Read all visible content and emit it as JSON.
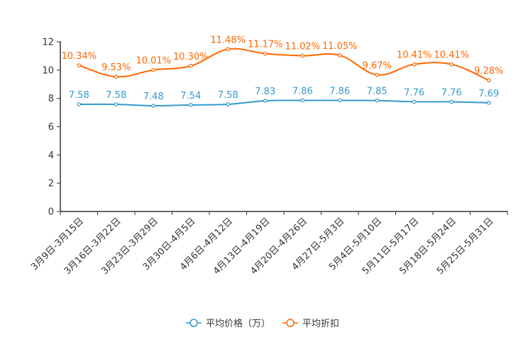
{
  "chart_data": {
    "type": "line",
    "categories": [
      "3月9日-3月15日",
      "3月16日-3月22日",
      "3月23日-3月29日",
      "3月30日-4月5日",
      "4月6日-4月12日",
      "4月13日-4月19日",
      "4月20日-4月26日",
      "4月27日-5月3日",
      "5月4日-5月10日",
      "5月11日-5月17日",
      "5月18日-5月24日",
      "5月25日-5月31日"
    ],
    "series": [
      {
        "name": "平均价格（万）",
        "color": "#3399cc",
        "values": [
          7.58,
          7.58,
          7.48,
          7.54,
          7.58,
          7.83,
          7.86,
          7.86,
          7.85,
          7.76,
          7.76,
          7.69
        ],
        "labels": [
          "7.58",
          "7.58",
          "7.48",
          "7.54",
          "7.58",
          "7.83",
          "7.86",
          "7.86",
          "7.85",
          "7.76",
          "7.76",
          "7.69"
        ]
      },
      {
        "name": "平均折扣",
        "color": "#ff6600",
        "values": [
          10.34,
          9.53,
          10.01,
          10.3,
          11.48,
          11.17,
          11.02,
          11.05,
          9.67,
          10.41,
          10.41,
          9.28
        ],
        "labels": [
          "10.34%",
          "9.53%",
          "10.01%",
          "10.30%",
          "11.48%",
          "11.17%",
          "11.02%",
          "11.05%",
          "9.67%",
          "10.41%",
          "10.41%",
          "9.28%"
        ]
      }
    ],
    "ylim": [
      0,
      12
    ],
    "yticks": [
      0,
      2,
      4,
      6,
      8,
      10,
      12
    ],
    "legend_position": "bottom-center"
  }
}
